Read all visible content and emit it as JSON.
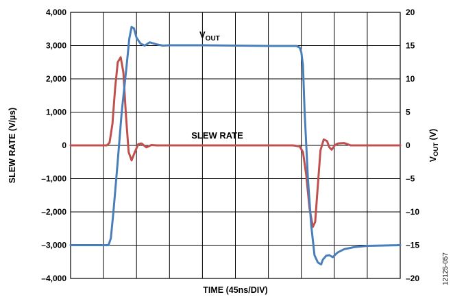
{
  "chart_data": {
    "type": "line",
    "xlabel": "TIME (45ns/DIV)",
    "ylabel_left": "SLEW RATE (V/µs)",
    "ylabel_right": {
      "main": "V",
      "sub": "OUT",
      "unit": " (V)"
    },
    "ylim_left": [
      -4000,
      4000
    ],
    "ylim_right": [
      -20,
      20
    ],
    "xlim": [
      0,
      10
    ],
    "grid": true,
    "left_ticks": [
      "4,000",
      "3,000",
      "2,000",
      "1,000",
      "0",
      "–1,000",
      "–2,000",
      "–3,000",
      "–4,000"
    ],
    "right_ticks": [
      "20",
      "15",
      "10",
      "5",
      "0",
      "–5",
      "–10",
      "–15",
      "–20"
    ],
    "colors": {
      "slew_rate": "#c0504d",
      "vout": "#4a7ebb",
      "grid": "#000000"
    },
    "annotations": {
      "vout": {
        "main": "V",
        "sub": "OUT"
      },
      "slew_rate": "SLEW RATE"
    },
    "figure_code": "12125-057",
    "series": [
      {
        "name": "V_OUT",
        "axis": "right",
        "x": [
          0,
          0.5,
          1.0,
          1.15,
          1.22,
          1.3,
          1.42,
          1.55,
          1.7,
          1.78,
          1.85,
          1.92,
          2.0,
          2.12,
          2.25,
          2.4,
          2.6,
          2.8,
          3.0,
          3.5,
          4.0,
          5.0,
          6.0,
          6.5,
          6.85,
          6.95,
          7.0,
          7.05,
          7.1,
          7.2,
          7.3,
          7.4,
          7.5,
          7.6,
          7.65,
          7.75,
          7.85,
          7.95,
          8.1,
          8.3,
          8.6,
          9.0,
          10.0
        ],
        "y": [
          -15,
          -15,
          -15,
          -15,
          -14,
          -10,
          -3,
          5,
          12,
          16,
          17.8,
          17.6,
          16.2,
          15.3,
          15.0,
          15.5,
          15.2,
          15.0,
          15.05,
          15.05,
          15.05,
          15.0,
          14.95,
          14.95,
          14.95,
          14.7,
          14.0,
          12.0,
          5,
          -5,
          -12,
          -16.5,
          -17.6,
          -17.9,
          -17.2,
          -16.6,
          -16.5,
          -16.8,
          -16.1,
          -15.6,
          -15.3,
          -15.1,
          -15.0
        ]
      },
      {
        "name": "SLEW RATE",
        "axis": "left",
        "x": [
          0,
          0.5,
          1.0,
          1.1,
          1.18,
          1.27,
          1.35,
          1.43,
          1.52,
          1.6,
          1.68,
          1.76,
          1.85,
          1.93,
          2.05,
          2.15,
          2.3,
          2.45,
          2.6,
          2.8,
          3.0,
          4.0,
          5.0,
          6.0,
          6.75,
          6.95,
          7.05,
          7.15,
          7.25,
          7.35,
          7.42,
          7.5,
          7.58,
          7.68,
          7.78,
          7.85,
          7.92,
          8.02,
          8.12,
          8.3,
          8.5,
          8.7,
          9.0,
          9.5,
          10.0
        ],
        "y": [
          0,
          0,
          0,
          0,
          80,
          650,
          1700,
          2500,
          2650,
          2200,
          900,
          -200,
          -450,
          -250,
          30,
          60,
          -60,
          10,
          0,
          0,
          0,
          0,
          0,
          0,
          0,
          -30,
          -200,
          -900,
          -1900,
          -2450,
          -2300,
          -1200,
          -150,
          180,
          130,
          -60,
          -130,
          10,
          60,
          70,
          0,
          0,
          0,
          0,
          0
        ]
      }
    ]
  }
}
